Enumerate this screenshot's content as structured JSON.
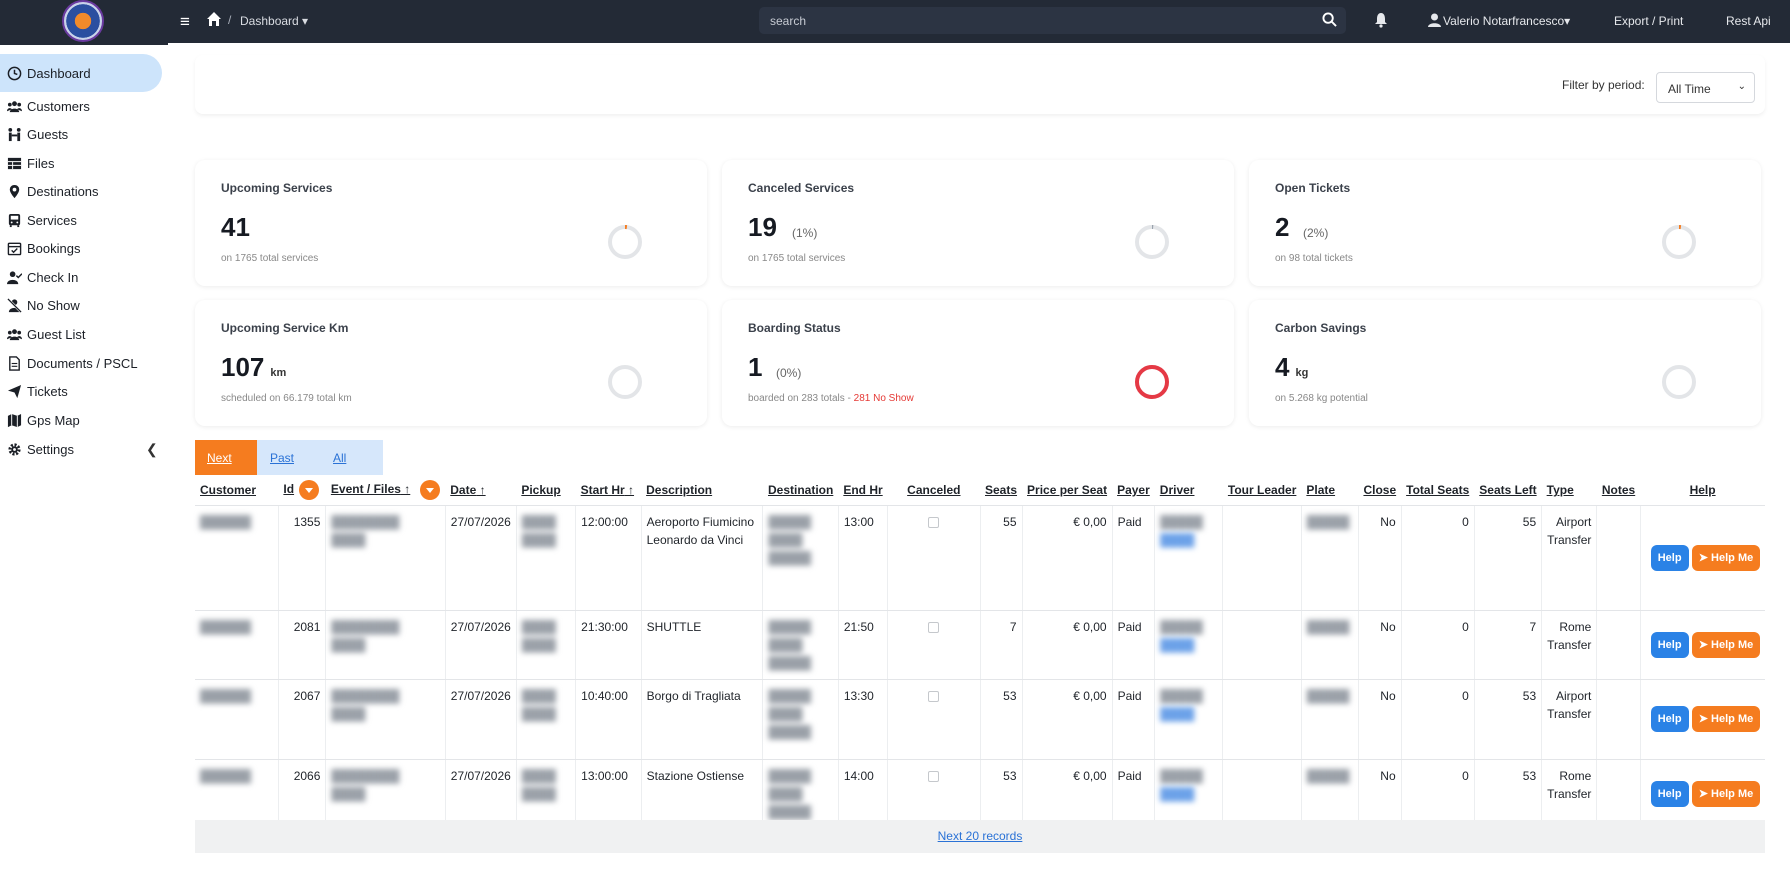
{
  "topbar": {
    "breadcrumb": "Dashboard",
    "search_placeholder": "search",
    "user": "Valerio Notarfrancesco",
    "export": "Export / Print",
    "rest_api": "Rest Api"
  },
  "sidebar": {
    "items": [
      {
        "label": "Dashboard",
        "icon": "clock-icon"
      },
      {
        "label": "Customers",
        "icon": "users-icon"
      },
      {
        "label": "Guests",
        "icon": "guests-icon"
      },
      {
        "label": "Files",
        "icon": "table-icon"
      },
      {
        "label": "Destinations",
        "icon": "map-pin-icon"
      },
      {
        "label": "Services",
        "icon": "bus-icon"
      },
      {
        "label": "Bookings",
        "icon": "calendar-check-icon"
      },
      {
        "label": "Check In",
        "icon": "user-check-icon"
      },
      {
        "label": "No Show",
        "icon": "user-slash-icon"
      },
      {
        "label": "Guest List",
        "icon": "users-icon"
      },
      {
        "label": "Documents / PSCL",
        "icon": "document-icon"
      },
      {
        "label": "Tickets",
        "icon": "paper-plane-icon"
      },
      {
        "label": "Gps Map",
        "icon": "map-icon"
      },
      {
        "label": "Settings",
        "icon": "gear-icon"
      }
    ]
  },
  "filter": {
    "label": "Filter by period:",
    "value": "All Time"
  },
  "cards": [
    {
      "title": "Upcoming Services",
      "value": "41",
      "unit": "",
      "pct": "",
      "sub": "on 1765 total services",
      "sub_red": "",
      "ring": 0.02,
      "ring_color": "#f57c1f"
    },
    {
      "title": "Canceled Services",
      "value": "19",
      "unit": "",
      "pct": "(1%)",
      "sub": "on 1765 total services",
      "sub_red": "",
      "ring": 0.01,
      "ring_color": "#9aa3ad"
    },
    {
      "title": "Open Tickets",
      "value": "2",
      "unit": "",
      "pct": "(2%)",
      "sub": "on 98 total tickets",
      "sub_red": "",
      "ring": 0.02,
      "ring_color": "#f57c1f"
    },
    {
      "title": "Upcoming Service Km",
      "value": "107",
      "unit": "km",
      "pct": "",
      "sub": "scheduled on 66.179 total km",
      "sub_red": "",
      "ring": 0,
      "ring_color": "#f57c1f"
    },
    {
      "title": "Boarding Status",
      "value": "1",
      "unit": "",
      "pct": "(0%)",
      "sub": "boarded on 283 totals - ",
      "sub_red": "281 No Show",
      "ring": 1,
      "ring_color": "#e53945"
    },
    {
      "title": "Carbon Savings",
      "value": "4",
      "unit": "kg",
      "pct": "",
      "sub": "on 5.268 kg potential",
      "sub_red": "",
      "ring": 0,
      "ring_color": "#f57c1f"
    }
  ],
  "tabs": {
    "next": "Next",
    "past": "Past",
    "all": "All"
  },
  "table": {
    "headers": [
      "Customer",
      "Id",
      "Event / Files",
      "Date",
      "Pickup",
      "Start Hr",
      "Description",
      "Destination",
      "End Hr",
      "Canceled",
      "Seats",
      "Price per Seat",
      "Payer",
      "Driver",
      "Tour Leader",
      "Plate",
      "Close",
      "Total Seats",
      "Seats Left",
      "Type",
      "Notes",
      "Help"
    ],
    "rows": [
      {
        "id": "1355",
        "date": "27/07/2026",
        "start": "12:00:00",
        "desc": "Aeroporto Fiumicino Leonardo da Vinci",
        "end": "13:00",
        "seats": "55",
        "price": "€ 0,00",
        "payer": "Paid",
        "close": "No",
        "total": "0",
        "left": "55",
        "type": "Airport Transfer"
      },
      {
        "id": "2081",
        "date": "27/07/2026",
        "start": "21:30:00",
        "desc": "SHUTTLE",
        "end": "21:50",
        "seats": "7",
        "price": "€ 0,00",
        "payer": "Paid",
        "close": "No",
        "total": "0",
        "left": "7",
        "type": "Rome Transfer"
      },
      {
        "id": "2067",
        "date": "27/07/2026",
        "start": "10:40:00",
        "desc": "Borgo di Tragliata",
        "end": "13:30",
        "seats": "53",
        "price": "€ 0,00",
        "payer": "Paid",
        "close": "No",
        "total": "0",
        "left": "53",
        "type": "Airport Transfer"
      },
      {
        "id": "2066",
        "date": "27/07/2026",
        "start": "13:00:00",
        "desc": "Stazione Ostiense",
        "end": "14:00",
        "seats": "53",
        "price": "€ 0,00",
        "payer": "Paid",
        "close": "No",
        "total": "0",
        "left": "53",
        "type": "Rome Transfer"
      }
    ],
    "help_label": "Help",
    "helpme_label": "Help Me"
  },
  "footer": "Next 20 records"
}
